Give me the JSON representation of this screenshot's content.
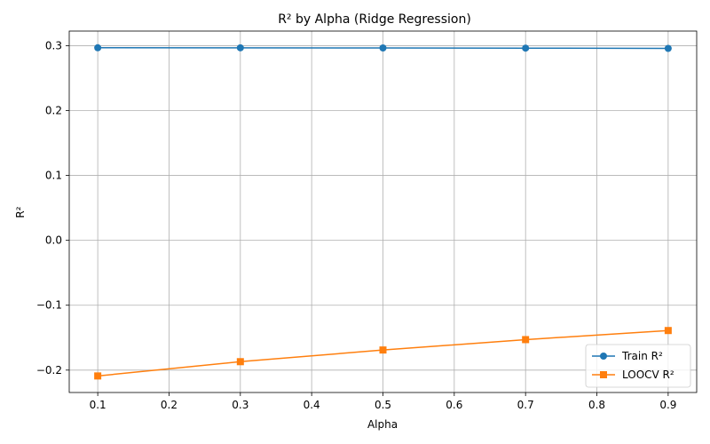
{
  "chart_data": {
    "type": "line",
    "title": "R² by Alpha (Ridge Regression)",
    "xlabel": "Alpha",
    "ylabel": "R²",
    "x": [
      0.1,
      0.3,
      0.5,
      0.7,
      0.9
    ],
    "xlim": [
      0.06,
      0.94
    ],
    "ylim": [
      -0.2345,
      0.3225
    ],
    "xticks": [
      0.1,
      0.2,
      0.3,
      0.4,
      0.5,
      0.6,
      0.7,
      0.8,
      0.9
    ],
    "xtick_labels": [
      "0.1",
      "0.2",
      "0.3",
      "0.4",
      "0.5",
      "0.6",
      "0.7",
      "0.8",
      "0.9"
    ],
    "yticks": [
      -0.2,
      -0.1,
      0.0,
      0.1,
      0.2,
      0.3
    ],
    "ytick_labels": [
      "−0.2",
      "−0.1",
      "0.0",
      "0.1",
      "0.2",
      "0.3"
    ],
    "grid": true,
    "legend_position": "lower-right",
    "series": [
      {
        "name": "Train R²",
        "values": [
          0.2968,
          0.2967,
          0.2965,
          0.2962,
          0.2958
        ],
        "color": "#1f77b4",
        "marker": "circle"
      },
      {
        "name": "LOOCV R²",
        "values": [
          -0.209,
          -0.187,
          -0.169,
          -0.153,
          -0.139
        ],
        "color": "#ff7f0e",
        "marker": "square"
      }
    ]
  }
}
